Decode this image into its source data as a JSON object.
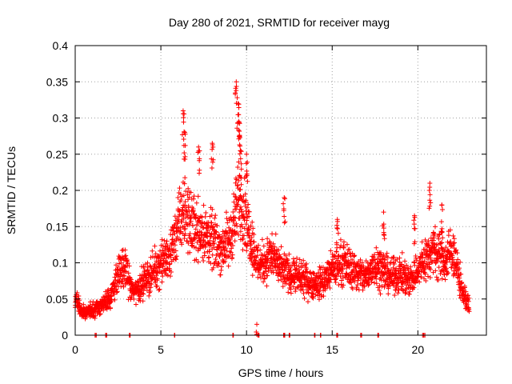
{
  "chart_data": {
    "type": "scatter",
    "title": "Day 280 of 2021, SRMTID for receiver mayg",
    "xlabel": "GPS time / hours",
    "ylabel": "SRMTID / TECUs",
    "xlim": [
      0,
      24
    ],
    "ylim": [
      0,
      0.4
    ],
    "xticks": [
      0,
      5,
      10,
      15,
      20
    ],
    "xtick_labels": [
      "0",
      "5",
      "10",
      "15",
      "20"
    ],
    "yticks": [
      0,
      0.05,
      0.1,
      0.15,
      0.2,
      0.25,
      0.3,
      0.35,
      0.4
    ],
    "ytick_labels": [
      "0",
      "0.05",
      "0.1",
      "0.15",
      "0.2",
      "0.25",
      "0.3",
      "0.35",
      "0.4"
    ],
    "grid": true,
    "marker": "plus",
    "color": "#ff0000",
    "series": [
      {
        "name": "SRMTID",
        "trend_x": [
          0,
          0.3,
          0.6,
          1.0,
          1.5,
          2.0,
          2.3,
          2.6,
          3.0,
          3.3,
          3.7,
          4.0,
          4.5,
          5.0,
          5.5,
          5.8,
          6.0,
          6.3,
          6.6,
          7.0,
          7.5,
          8.0,
          8.5,
          9.0,
          9.3,
          9.6,
          9.9,
          10.2,
          10.6,
          11.0,
          11.5,
          12.0,
          12.5,
          13.0,
          13.5,
          14.0,
          14.5,
          15.0,
          15.5,
          16.0,
          16.5,
          17.0,
          17.5,
          18.0,
          18.5,
          19.0,
          19.5,
          20.0,
          20.3,
          20.6,
          21.0,
          21.3,
          21.6,
          22.0,
          22.3,
          22.6,
          23.0
        ],
        "trend_y": [
          0.05,
          0.035,
          0.03,
          0.035,
          0.04,
          0.05,
          0.07,
          0.09,
          0.09,
          0.06,
          0.065,
          0.075,
          0.085,
          0.1,
          0.11,
          0.13,
          0.15,
          0.17,
          0.16,
          0.15,
          0.14,
          0.13,
          0.12,
          0.13,
          0.16,
          0.19,
          0.17,
          0.14,
          0.1,
          0.1,
          0.11,
          0.09,
          0.085,
          0.08,
          0.075,
          0.07,
          0.075,
          0.09,
          0.1,
          0.095,
          0.085,
          0.08,
          0.1,
          0.09,
          0.08,
          0.085,
          0.075,
          0.09,
          0.1,
          0.11,
          0.12,
          0.11,
          0.1,
          0.12,
          0.09,
          0.06,
          0.04
        ],
        "peaks": [
          {
            "x": 6.3,
            "y": 0.31
          },
          {
            "x": 6.4,
            "y": 0.28
          },
          {
            "x": 7.2,
            "y": 0.26
          },
          {
            "x": 8.0,
            "y": 0.265
          },
          {
            "x": 9.4,
            "y": 0.35
          },
          {
            "x": 9.5,
            "y": 0.32
          },
          {
            "x": 9.55,
            "y": 0.295
          },
          {
            "x": 9.6,
            "y": 0.275
          },
          {
            "x": 9.65,
            "y": 0.255
          },
          {
            "x": 10.0,
            "y": 0.25
          },
          {
            "x": 12.2,
            "y": 0.19
          },
          {
            "x": 15.3,
            "y": 0.16
          },
          {
            "x": 18.0,
            "y": 0.17
          },
          {
            "x": 19.8,
            "y": 0.165
          },
          {
            "x": 20.7,
            "y": 0.21
          },
          {
            "x": 21.4,
            "y": 0.18
          },
          {
            "x": 10.6,
            "y": 0.015
          }
        ],
        "zero_points_x": [
          1.2,
          1.8,
          3.2,
          5.8,
          9.2,
          10.7,
          12.2,
          12.5,
          14.0,
          14.3,
          15.3,
          16.7,
          17.7,
          20.3,
          20.4
        ]
      }
    ]
  }
}
